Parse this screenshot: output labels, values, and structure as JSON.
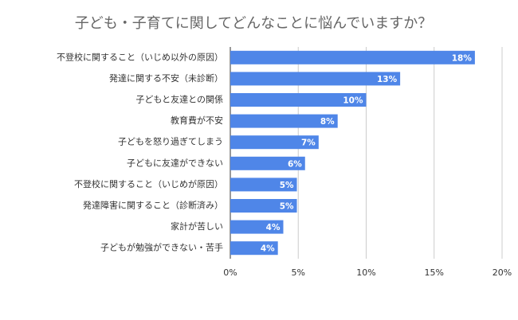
{
  "chart_data": {
    "type": "bar",
    "orientation": "horizontal",
    "title": "子ども・子育てに関してどんなことに悩んでいますか？",
    "categories": [
      "不登校に関すること（いじめ以外の原因）",
      "発達に関する不安（未診断）",
      "子どもと友達との関係",
      "教育費が不安",
      "子どもを怒り過ぎてしまう",
      "子どもに友達ができない",
      "不登校に関すること（いじめが原因）",
      "発達障害に関すること（診断済み）",
      "家計が苦しい",
      "子どもが勉強ができない・苦手"
    ],
    "values": [
      18,
      12.5,
      10,
      7.9,
      6.5,
      5.5,
      4.9,
      4.9,
      3.9,
      3.5
    ],
    "value_labels": [
      "18%",
      "13%",
      "10%",
      "8%",
      "7%",
      "6%",
      "5%",
      "5%",
      "4%",
      "4%"
    ],
    "color": "#4f86e8",
    "xlim": [
      0,
      20
    ],
    "xticks": [
      {
        "value": 0,
        "label": "0%"
      },
      {
        "value": 5,
        "label": "5%"
      },
      {
        "value": 10,
        "label": "10%"
      },
      {
        "value": 15,
        "label": "15%"
      },
      {
        "value": 20,
        "label": "20%"
      }
    ],
    "grid": true
  }
}
